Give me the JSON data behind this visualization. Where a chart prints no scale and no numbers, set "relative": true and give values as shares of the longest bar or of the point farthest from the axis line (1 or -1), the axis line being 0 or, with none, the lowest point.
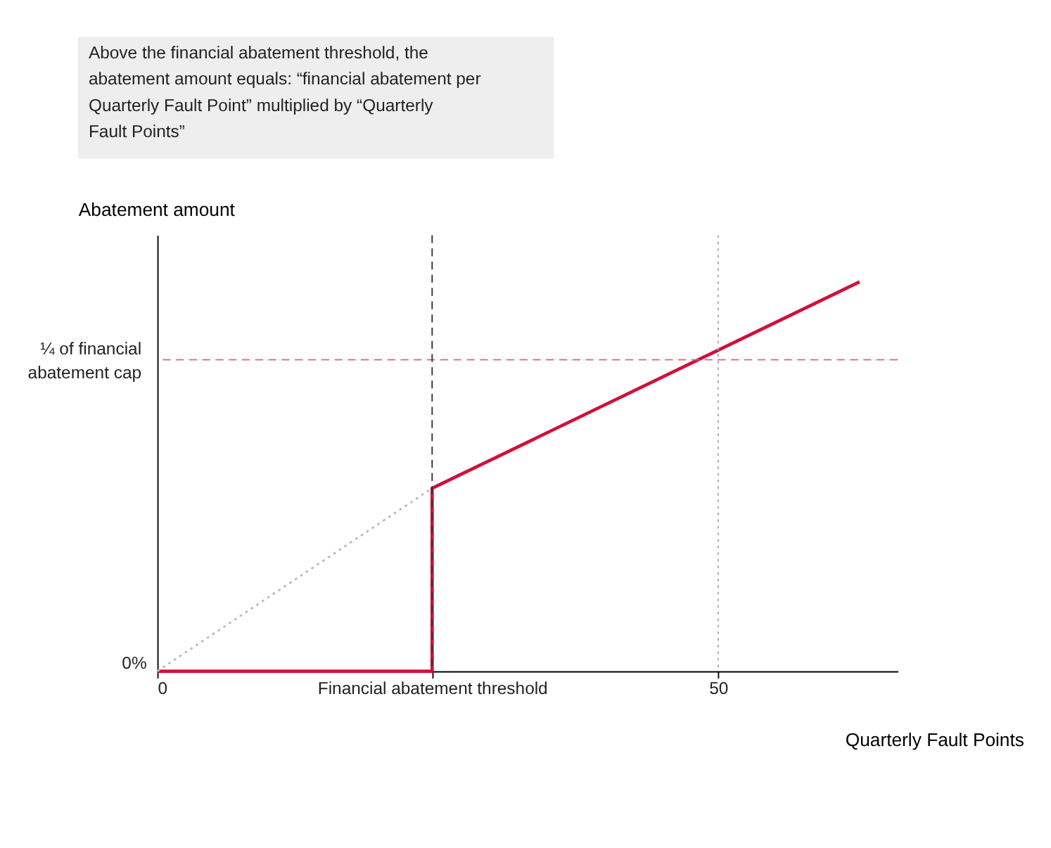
{
  "chart_data": {
    "type": "line",
    "relative": true,
    "xlabel": "Quarterly Fault Points",
    "ylabel": "Abatement amount",
    "xlim": [
      0,
      66
    ],
    "xticks": [
      0,
      {
        "value": 24.5,
        "label": "Financial abatement threshold"
      },
      50
    ],
    "series": [
      {
        "color": "#d0103a",
        "line_style": "solid",
        "x": [
          0,
          24.5,
          24.5,
          62.6
        ],
        "values": [
          0,
          0,
          0.47,
          1
        ]
      },
      {
        "color": "#bbbbbb",
        "line_style": "dotted",
        "x": [
          0,
          24.5
        ],
        "values": [
          0,
          0.47
        ]
      }
    ],
    "ref_lines": [
      {
        "axis": "y",
        "value": 0.8,
        "label": "¼ of financial abatement cap",
        "color": "#e06080",
        "line_style": "dashed"
      },
      {
        "axis": "x",
        "value": 24.5,
        "color": "#333333",
        "line_style": "dashed"
      },
      {
        "axis": "x",
        "value": 50,
        "color": "#aaaaaa",
        "line_style": "dotted"
      }
    ],
    "annotations": [
      {
        "text": "0%",
        "x": 0,
        "y": 0
      },
      "Above the financial abatement threshold, the abatement amount equals: “financial abatement per Quarterly Fault Point” multiplied by “Quarterly Fault Points”"
    ],
    "grid": false,
    "marker": "none"
  }
}
